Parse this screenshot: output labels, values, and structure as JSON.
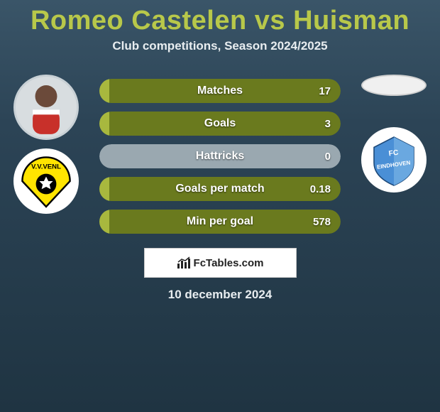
{
  "title": "Romeo Castelen vs Huisman",
  "subtitle": "Club competitions, Season 2024/2025",
  "date": "10 december 2024",
  "footer_brand": "FcTables.com",
  "colors": {
    "accent": "#b8c84a",
    "bar_left": "#a8b83e",
    "bar_right": "#6a7a1e",
    "bar_left_neutral": "#9aa8b0"
  },
  "left": {
    "player_name": "Romeo Castelen",
    "club_name": "VVV-Venlo",
    "club_colors": {
      "primary": "#ffe400",
      "secondary": "#000000"
    }
  },
  "right": {
    "player_name": "Huisman",
    "club_name": "FC Eindhoven",
    "club_colors": {
      "primary": "#4a8fd6",
      "secondary": "#ffffff"
    }
  },
  "stats": [
    {
      "label": "Matches",
      "left_val": null,
      "right_val": "17",
      "left_pct": 4
    },
    {
      "label": "Goals",
      "left_val": null,
      "right_val": "3",
      "left_pct": 4
    },
    {
      "label": "Hattricks",
      "left_val": null,
      "right_val": "0",
      "left_pct": 50
    },
    {
      "label": "Goals per match",
      "left_val": null,
      "right_val": "0.18",
      "left_pct": 4
    },
    {
      "label": "Min per goal",
      "left_val": null,
      "right_val": "578",
      "left_pct": 4
    }
  ]
}
